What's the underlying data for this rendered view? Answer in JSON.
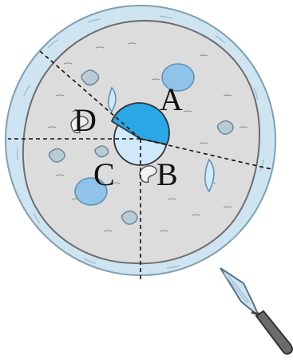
{
  "figure": {
    "labels": {
      "A": "A",
      "B": "B",
      "C": "C",
      "D": "D"
    },
    "colors": {
      "crust": "#cfe4f1",
      "crust_stroke": "#7f9fb3",
      "cheese": "#dcdcdc",
      "cheese_stroke": "#6d6d6d",
      "topping_blue": "#8fc4e8",
      "topping_gray": "#b9cbd6",
      "center_light": "#cfe9fa",
      "sector_highlight": "#2aa8e6",
      "cut_line": "#111111",
      "server_blade": "#cfe4f1",
      "server_handle": "#5a5a5a"
    },
    "icons": {
      "server": "pie-server-icon"
    }
  }
}
